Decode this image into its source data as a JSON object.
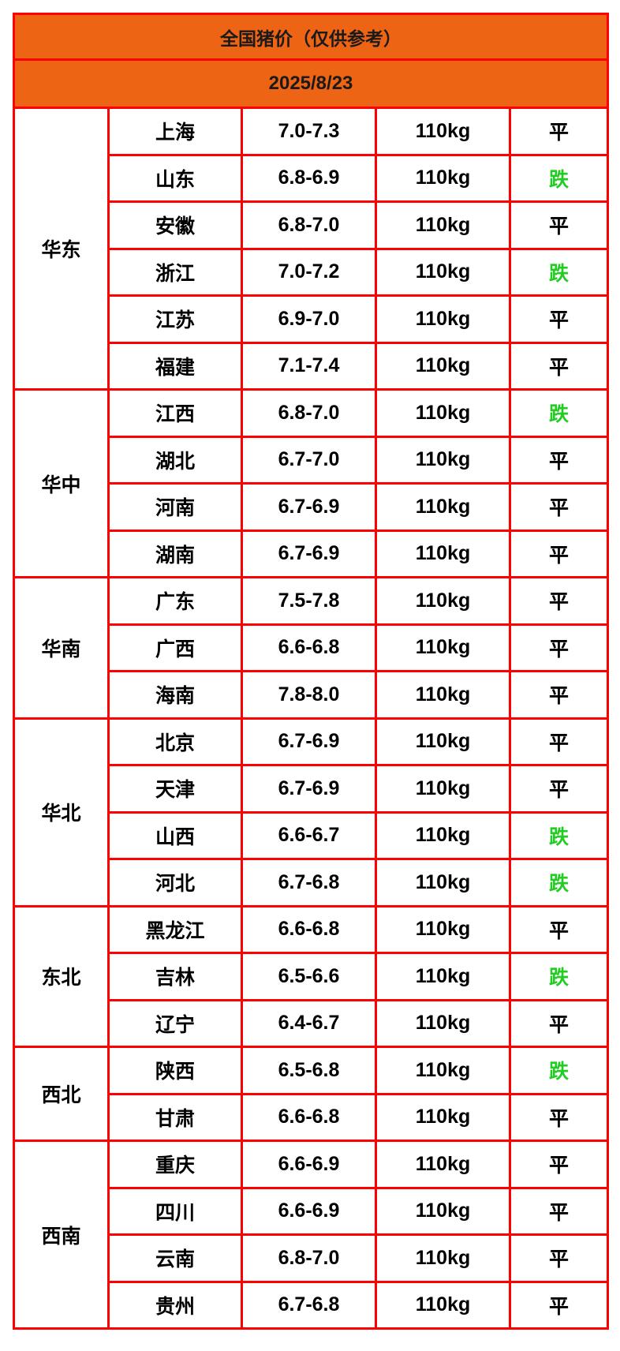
{
  "title": "全国猪价（仅供参考）",
  "date": "2025/8/23",
  "colors": {
    "header_bg": "#ec6414",
    "border": "#ff0000",
    "down": "#22cc22",
    "flat": "#000000"
  },
  "regions": [
    {
      "name": "华东",
      "rows": [
        {
          "province": "上海",
          "price": "7.0-7.3",
          "weight": "110kg",
          "trend": "平"
        },
        {
          "province": "山东",
          "price": "6.8-6.9",
          "weight": "110kg",
          "trend": "跌"
        },
        {
          "province": "安徽",
          "price": "6.8-7.0",
          "weight": "110kg",
          "trend": "平"
        },
        {
          "province": "浙江",
          "price": "7.0-7.2",
          "weight": "110kg",
          "trend": "跌"
        },
        {
          "province": "江苏",
          "price": "6.9-7.0",
          "weight": "110kg",
          "trend": "平"
        },
        {
          "province": "福建",
          "price": "7.1-7.4",
          "weight": "110kg",
          "trend": "平"
        }
      ]
    },
    {
      "name": "华中",
      "rows": [
        {
          "province": "江西",
          "price": "6.8-7.0",
          "weight": "110kg",
          "trend": "跌"
        },
        {
          "province": "湖北",
          "price": "6.7-7.0",
          "weight": "110kg",
          "trend": "平"
        },
        {
          "province": "河南",
          "price": "6.7-6.9",
          "weight": "110kg",
          "trend": "平"
        },
        {
          "province": "湖南",
          "price": "6.7-6.9",
          "weight": "110kg",
          "trend": "平"
        }
      ]
    },
    {
      "name": "华南",
      "rows": [
        {
          "province": "广东",
          "price": "7.5-7.8",
          "weight": "110kg",
          "trend": "平"
        },
        {
          "province": "广西",
          "price": "6.6-6.8",
          "weight": "110kg",
          "trend": "平"
        },
        {
          "province": "海南",
          "price": "7.8-8.0",
          "weight": "110kg",
          "trend": "平"
        }
      ]
    },
    {
      "name": "华北",
      "rows": [
        {
          "province": "北京",
          "price": "6.7-6.9",
          "weight": "110kg",
          "trend": "平"
        },
        {
          "province": "天津",
          "price": "6.7-6.9",
          "weight": "110kg",
          "trend": "平"
        },
        {
          "province": "山西",
          "price": "6.6-6.7",
          "weight": "110kg",
          "trend": "跌"
        },
        {
          "province": "河北",
          "price": "6.7-6.8",
          "weight": "110kg",
          "trend": "跌"
        }
      ]
    },
    {
      "name": "东北",
      "rows": [
        {
          "province": "黑龙江",
          "price": "6.6-6.8",
          "weight": "110kg",
          "trend": "平"
        },
        {
          "province": "吉林",
          "price": "6.5-6.6",
          "weight": "110kg",
          "trend": "跌"
        },
        {
          "province": "辽宁",
          "price": "6.4-6.7",
          "weight": "110kg",
          "trend": "平"
        }
      ]
    },
    {
      "name": "西北",
      "rows": [
        {
          "province": "陕西",
          "price": "6.5-6.8",
          "weight": "110kg",
          "trend": "跌"
        },
        {
          "province": "甘肃",
          "price": "6.6-6.8",
          "weight": "110kg",
          "trend": "平"
        }
      ]
    },
    {
      "name": "西南",
      "rows": [
        {
          "province": "重庆",
          "price": "6.6-6.9",
          "weight": "110kg",
          "trend": "平"
        },
        {
          "province": "四川",
          "price": "6.6-6.9",
          "weight": "110kg",
          "trend": "平"
        },
        {
          "province": "云南",
          "price": "6.8-7.0",
          "weight": "110kg",
          "trend": "平"
        },
        {
          "province": "贵州",
          "price": "6.7-6.8",
          "weight": "110kg",
          "trend": "平"
        }
      ]
    }
  ]
}
